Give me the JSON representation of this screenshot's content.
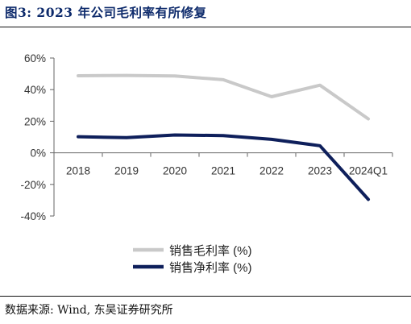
{
  "figure": {
    "title": "图3:  2023 年公司毛利率有所修复",
    "source": "数据来源:  Wind,  东吴证券研究所"
  },
  "chart_data": {
    "type": "line",
    "title": "",
    "xlabel": "",
    "ylabel": "",
    "categories": [
      "2018",
      "2019",
      "2020",
      "2021",
      "2022",
      "2023",
      "2024Q1"
    ],
    "y_ticks": [
      "60%",
      "40%",
      "20%",
      "0%",
      "-20%",
      "-40%"
    ],
    "ylim": [
      -40,
      60
    ],
    "y_unit": "%",
    "grid": false,
    "legend_position": "bottom",
    "series": [
      {
        "name": "销售毛利率 (%)",
        "color": "#c9c9c9",
        "values": [
          48.8,
          49.0,
          48.6,
          46.3,
          35.5,
          42.8,
          21.5
        ]
      },
      {
        "name": "销售净利率 (%)",
        "color": "#0e1f5b",
        "values": [
          10.2,
          9.6,
          11.3,
          10.9,
          8.5,
          4.5,
          -29.5
        ]
      }
    ]
  }
}
